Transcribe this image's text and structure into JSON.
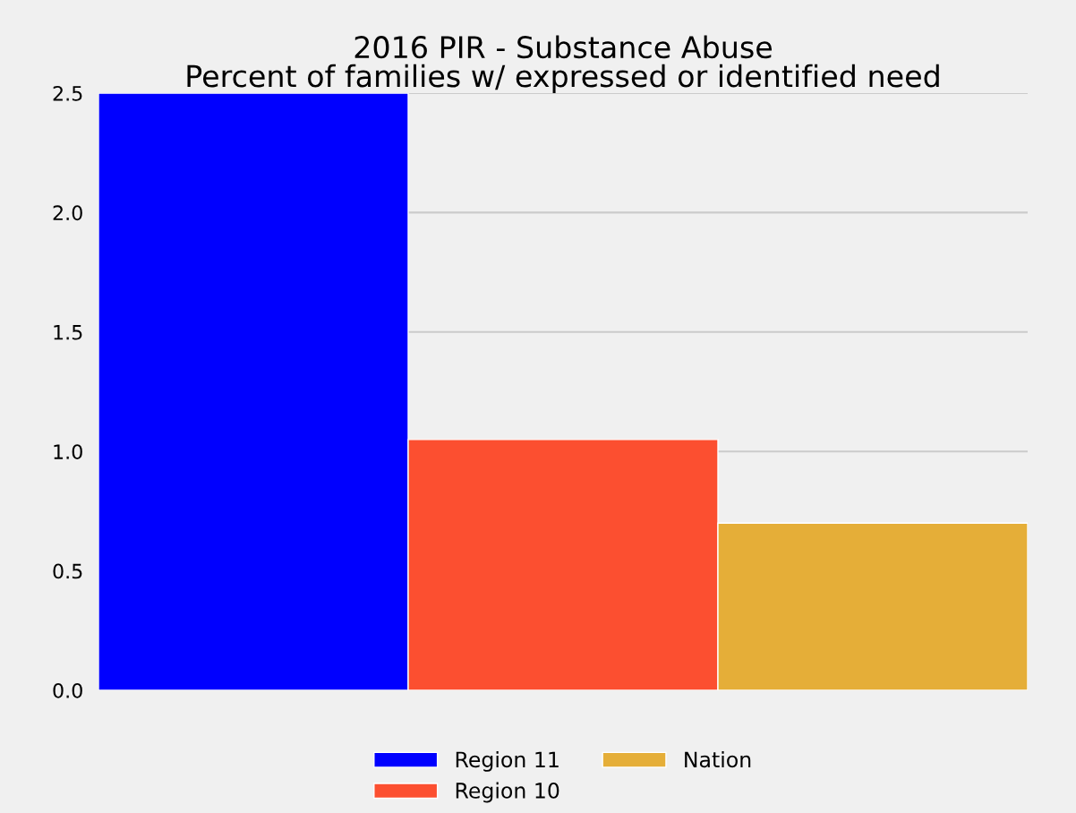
{
  "chart_data": {
    "type": "bar",
    "title": "2016 PIR - Substance Abuse",
    "subtitle": "Percent of families w/ expressed or identified need",
    "categories": [
      null
    ],
    "series": [
      {
        "name": "Region 11",
        "color": "#0000ff",
        "values": [
          2.5
        ]
      },
      {
        "name": "Region 10",
        "color": "#fc4f30",
        "values": [
          1.05
        ]
      },
      {
        "name": "Nation",
        "color": "#e5ae38",
        "values": [
          0.7
        ]
      }
    ],
    "ylim": [
      0,
      2.5
    ],
    "yticks": [
      {
        "value": 0,
        "label": "0.0"
      },
      0.5,
      {
        "value": 1,
        "label": "1.0"
      },
      1.5,
      {
        "value": 2,
        "label": "2.0"
      },
      2.5
    ],
    "grid": "y",
    "legend": "bottom"
  }
}
